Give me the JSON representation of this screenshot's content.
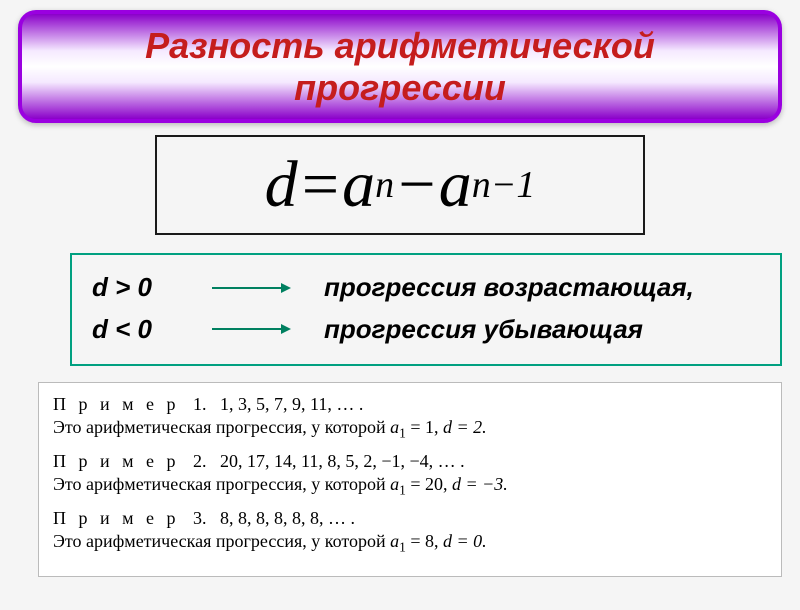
{
  "header": {
    "title_line1": "Разность арифметической",
    "title_line2": "прогрессии",
    "title_color": "#c51d1d",
    "title_fontsize": 36,
    "border_color": "#9a00e0"
  },
  "formula": {
    "fontsize": 66,
    "sub_fontsize": 38,
    "d": "d",
    "eq": " = ",
    "a1": "a",
    "sub1": "n",
    "minus": " − ",
    "a2": "a",
    "sub2": "n−1",
    "text_color": "#000000"
  },
  "conditions": {
    "fontsize": 26,
    "text_color": "#000000",
    "arrow_color": "#008060",
    "rows": [
      {
        "left": "d > 0",
        "right": "прогрессия возрастающая,"
      },
      {
        "left": "d < 0",
        "right": "прогрессия убывающая"
      }
    ]
  },
  "examples": {
    "fontsize": 18,
    "text_color": "#000000",
    "items": [
      {
        "label": "П р и м е р",
        "num": "1.",
        "seq": "1, 3, 5, 7, 9, 11, … .",
        "desc_prefix": "Это арифметическая прогрессия, у которой  ",
        "a1": "a",
        "a1v": " = 1,  ",
        "dv": "d = 2."
      },
      {
        "label": "П р и м е р",
        "num": "2.",
        "seq": "20, 17, 14, 11, 8, 5, 2, −1, −4, … .",
        "desc_prefix": "Это арифметическая прогрессия, у которой  ",
        "a1": "a",
        "a1v": " = 20,  ",
        "dv": "d = −3."
      },
      {
        "label": "П р и м е р",
        "num": "3.",
        "seq": "8, 8, 8, 8, 8, 8, … .",
        "desc_prefix": "Это арифметическая прогрессия, у которой  ",
        "a1": "a",
        "a1v": " = 8,  ",
        "dv": "d = 0."
      }
    ]
  }
}
